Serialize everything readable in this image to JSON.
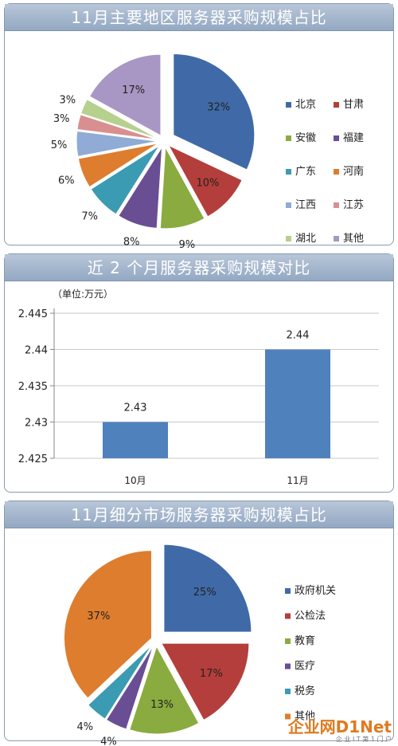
{
  "chart_data": [
    {
      "type": "pie",
      "title": "11月主要地区服务器采购规模占比",
      "categories": [
        "北京",
        "甘肃",
        "安徽",
        "福建",
        "广东",
        "河南",
        "江西",
        "江苏",
        "湖北",
        "其他"
      ],
      "values": [
        32,
        10,
        9,
        8,
        7,
        6,
        5,
        3,
        3,
        17
      ],
      "labels": [
        "32%",
        "10%",
        "9%",
        "8%",
        "7%",
        "6%",
        "5%",
        "3%",
        "3%",
        "17%"
      ],
      "colors": [
        "#3f6aa7",
        "#b43e3b",
        "#8aab3f",
        "#6a4e93",
        "#3b9bb2",
        "#de7d2e",
        "#8fabd6",
        "#d98f8f",
        "#b6d08e",
        "#a896c4"
      ],
      "legend_placement": "right"
    },
    {
      "type": "bar",
      "title": "近 2 个月服务器采购规模对比",
      "unit_label": "（单位:万元）",
      "categories": [
        "10月",
        "11月"
      ],
      "values": [
        2.43,
        2.44
      ],
      "data_labels": [
        "2.43",
        "2.44"
      ],
      "ylim": [
        2.425,
        2.445
      ],
      "yticks": [
        "2.445",
        "2.44",
        "2.435",
        "2.43",
        "2.425"
      ],
      "ytick_values": [
        2.445,
        2.44,
        2.435,
        2.43,
        2.425
      ],
      "grid": true,
      "bar_color": "#4f81bd"
    },
    {
      "type": "pie",
      "title": "11月细分市场服务器采购规模占比",
      "categories": [
        "政府机关",
        "公检法",
        "教育",
        "医疗",
        "税务",
        "其他"
      ],
      "values": [
        25,
        17,
        13,
        4,
        4,
        37
      ],
      "labels": [
        "25%",
        "17%",
        "13%",
        "4%",
        "4%",
        "37%"
      ],
      "colors": [
        "#3f6aa7",
        "#b43e3b",
        "#8aab3f",
        "#6a4e93",
        "#3b9bb2",
        "#de7d2e"
      ],
      "legend_placement": "right"
    }
  ],
  "logo": {
    "main": "企业网D1Net",
    "sub": "企 业 I T 第 1 门 户"
  }
}
